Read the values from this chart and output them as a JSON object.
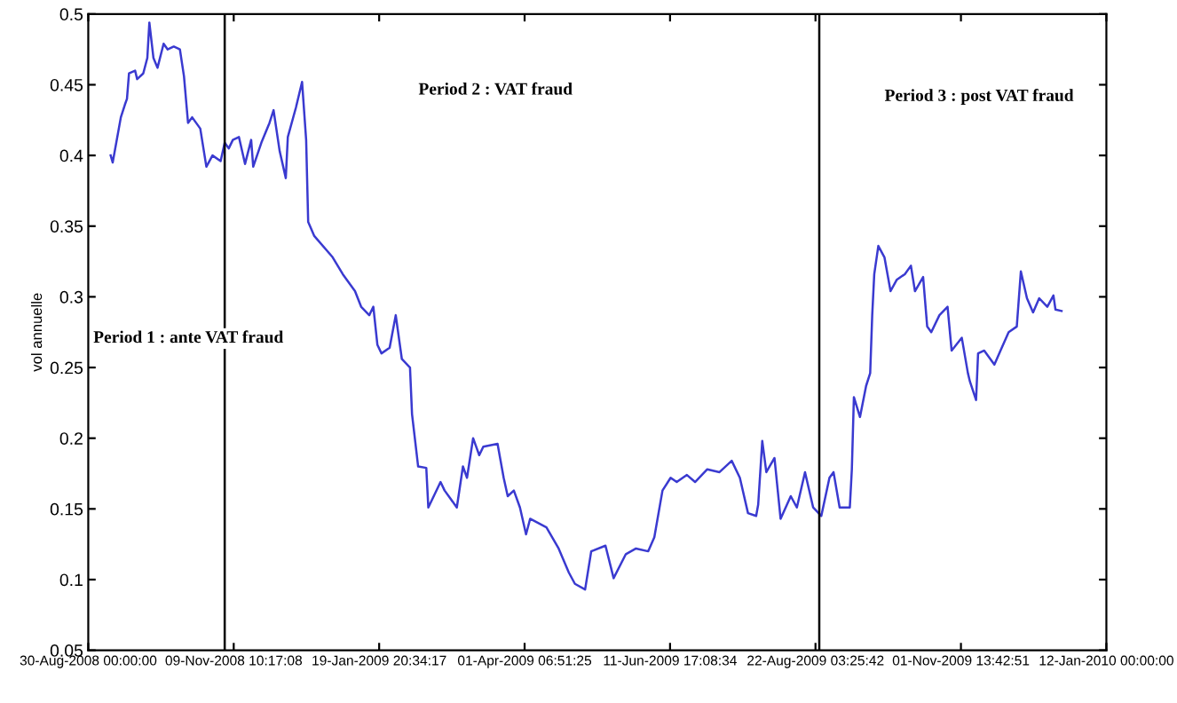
{
  "chart_data": {
    "type": "line",
    "ylabel": "vol annuelle",
    "annotations": [
      "Period 1 : ante VAT fraud",
      "Period 2 : VAT fraud",
      "Period 3 : post VAT fraud"
    ],
    "x": [
      "2008-09-10",
      "2008-09-11",
      "2008-09-15",
      "2008-09-17",
      "2008-09-18",
      "2008-09-19",
      "2008-09-22",
      "2008-09-23",
      "2008-09-26",
      "2008-09-28",
      "2008-09-29",
      "2008-10-01",
      "2008-10-03",
      "2008-10-06",
      "2008-10-08",
      "2008-10-11",
      "2008-10-14",
      "2008-10-16",
      "2008-10-18",
      "2008-10-20",
      "2008-10-24",
      "2008-10-27",
      "2008-10-30",
      "2008-11-03",
      "2008-11-05",
      "2008-11-07",
      "2008-11-09",
      "2008-11-12",
      "2008-11-15",
      "2008-11-18",
      "2008-11-19",
      "2008-11-23",
      "2008-11-27",
      "2008-11-29",
      "2008-12-02",
      "2008-12-05",
      "2008-12-06",
      "2008-12-10",
      "2008-12-13",
      "2008-12-15",
      "2008-12-16",
      "2008-12-19",
      "2008-12-28",
      "2009-01-02",
      "2009-01-08",
      "2009-01-11",
      "2009-01-15",
      "2009-01-17",
      "2009-01-19",
      "2009-01-21",
      "2009-01-25",
      "2009-01-28",
      "2009-01-31",
      "2009-02-04",
      "2009-02-05",
      "2009-02-08",
      "2009-02-12",
      "2009-02-13",
      "2009-02-19",
      "2009-02-21",
      "2009-02-27",
      "2009-03-02",
      "2009-03-04",
      "2009-03-07",
      "2009-03-10",
      "2009-03-12",
      "2009-03-19",
      "2009-03-22",
      "2009-03-24",
      "2009-03-27",
      "2009-03-30",
      "2009-04-02",
      "2009-04-04",
      "2009-04-12",
      "2009-04-18",
      "2009-04-23",
      "2009-04-26",
      "2009-05-01",
      "2009-05-04",
      "2009-05-11",
      "2009-05-15",
      "2009-05-21",
      "2009-05-26",
      "2009-06-01",
      "2009-06-04",
      "2009-06-08",
      "2009-06-12",
      "2009-06-15",
      "2009-06-20",
      "2009-06-24",
      "2009-06-30",
      "2009-07-06",
      "2009-07-12",
      "2009-07-16",
      "2009-07-20",
      "2009-07-24",
      "2009-07-25",
      "2009-07-27",
      "2009-07-29",
      "2009-08-02",
      "2009-08-05",
      "2009-08-10",
      "2009-08-13",
      "2009-08-17",
      "2009-08-21",
      "2009-08-25",
      "2009-08-29",
      "2009-08-31",
      "2009-09-03",
      "2009-09-08",
      "2009-09-09",
      "2009-09-10",
      "2009-09-13",
      "2009-09-16",
      "2009-09-18",
      "2009-09-19",
      "2009-09-20",
      "2009-09-22",
      "2009-09-25",
      "2009-09-28",
      "2009-10-01",
      "2009-10-05",
      "2009-10-08",
      "2009-10-10",
      "2009-10-14",
      "2009-10-16",
      "2009-10-18",
      "2009-10-22",
      "2009-10-26",
      "2009-10-28",
      "2009-11-02",
      "2009-11-05",
      "2009-11-06",
      "2009-11-09",
      "2009-11-10",
      "2009-11-13",
      "2009-11-18",
      "2009-11-21",
      "2009-11-25",
      "2009-11-29",
      "2009-12-01",
      "2009-12-04",
      "2009-12-07",
      "2009-12-10",
      "2009-12-14",
      "2009-12-17",
      "2009-12-18",
      "2009-12-21"
    ],
    "series": [
      {
        "color": "#3a3ad0",
        "values": [
          0.4,
          0.395,
          0.427,
          0.436,
          0.44,
          0.458,
          0.46,
          0.454,
          0.458,
          0.469,
          0.494,
          0.469,
          0.462,
          0.479,
          0.475,
          0.477,
          0.475,
          0.456,
          0.423,
          0.427,
          0.419,
          0.392,
          0.4,
          0.396,
          0.409,
          0.405,
          0.411,
          0.413,
          0.394,
          0.411,
          0.392,
          0.409,
          0.423,
          0.432,
          0.403,
          0.384,
          0.413,
          0.434,
          0.452,
          0.411,
          0.353,
          0.343,
          0.328,
          0.316,
          0.304,
          0.293,
          0.287,
          0.293,
          0.266,
          0.26,
          0.264,
          0.287,
          0.256,
          0.25,
          0.217,
          0.18,
          0.179,
          0.151,
          0.169,
          0.163,
          0.151,
          0.18,
          0.172,
          0.2,
          0.188,
          0.194,
          0.196,
          0.172,
          0.159,
          0.163,
          0.151,
          0.132,
          0.143,
          0.137,
          0.122,
          0.105,
          0.097,
          0.093,
          0.12,
          0.124,
          0.101,
          0.118,
          0.122,
          0.12,
          0.13,
          0.163,
          0.172,
          0.169,
          0.174,
          0.169,
          0.178,
          0.176,
          0.184,
          0.172,
          0.147,
          0.145,
          0.153,
          0.198,
          0.176,
          0.186,
          0.143,
          0.159,
          0.151,
          0.176,
          0.151,
          0.145,
          0.172,
          0.176,
          0.151,
          0.151,
          0.178,
          0.229,
          0.215,
          0.237,
          0.246,
          0.287,
          0.316,
          0.336,
          0.328,
          0.304,
          0.312,
          0.316,
          0.322,
          0.304,
          0.314,
          0.279,
          0.275,
          0.287,
          0.293,
          0.262,
          0.271,
          0.246,
          0.24,
          0.227,
          0.26,
          0.262,
          0.252,
          0.262,
          0.275,
          0.279,
          0.318,
          0.299,
          0.289,
          0.299,
          0.293,
          0.301,
          0.291,
          0.29
        ]
      }
    ],
    "xlim": [
      "2008-08-30T00:00",
      "2010-01-12T00:00"
    ],
    "xticks": [
      {
        "value": "2008-08-30T00:00",
        "label": "30-Aug-2008 00:00:00"
      },
      {
        "value": "2008-11-09T10:17",
        "label": "09-Nov-2008 10:17:08"
      },
      {
        "value": "2009-01-19T20:34",
        "label": "19-Jan-2009 20:34:17"
      },
      {
        "value": "2009-04-01T06:51",
        "label": "01-Apr-2009 06:51:25"
      },
      {
        "value": "2009-06-11T17:08",
        "label": "11-Jun-2009 17:08:34"
      },
      {
        "value": "2009-08-22T03:25",
        "label": "22-Aug-2009 03:25:42"
      },
      {
        "value": "2009-11-01T13:42",
        "label": "01-Nov-2009 13:42:51"
      },
      {
        "value": "2010-01-12T00:00",
        "label": "12-Jan-2010 00:00:00"
      }
    ],
    "ylim": [
      0.05,
      0.5
    ],
    "yticks": [
      0.05,
      0.1,
      0.15,
      0.2,
      0.25,
      0.3,
      0.35,
      0.4,
      0.45,
      0.5
    ],
    "ref_lines": [
      {
        "axis": "x",
        "value": "2008-11-05",
        "color": "#000000"
      },
      {
        "axis": "x",
        "value": "2009-08-24",
        "color": "#000000"
      }
    ],
    "grid": false,
    "legend": false,
    "line_style": "solid",
    "marker": "none"
  }
}
